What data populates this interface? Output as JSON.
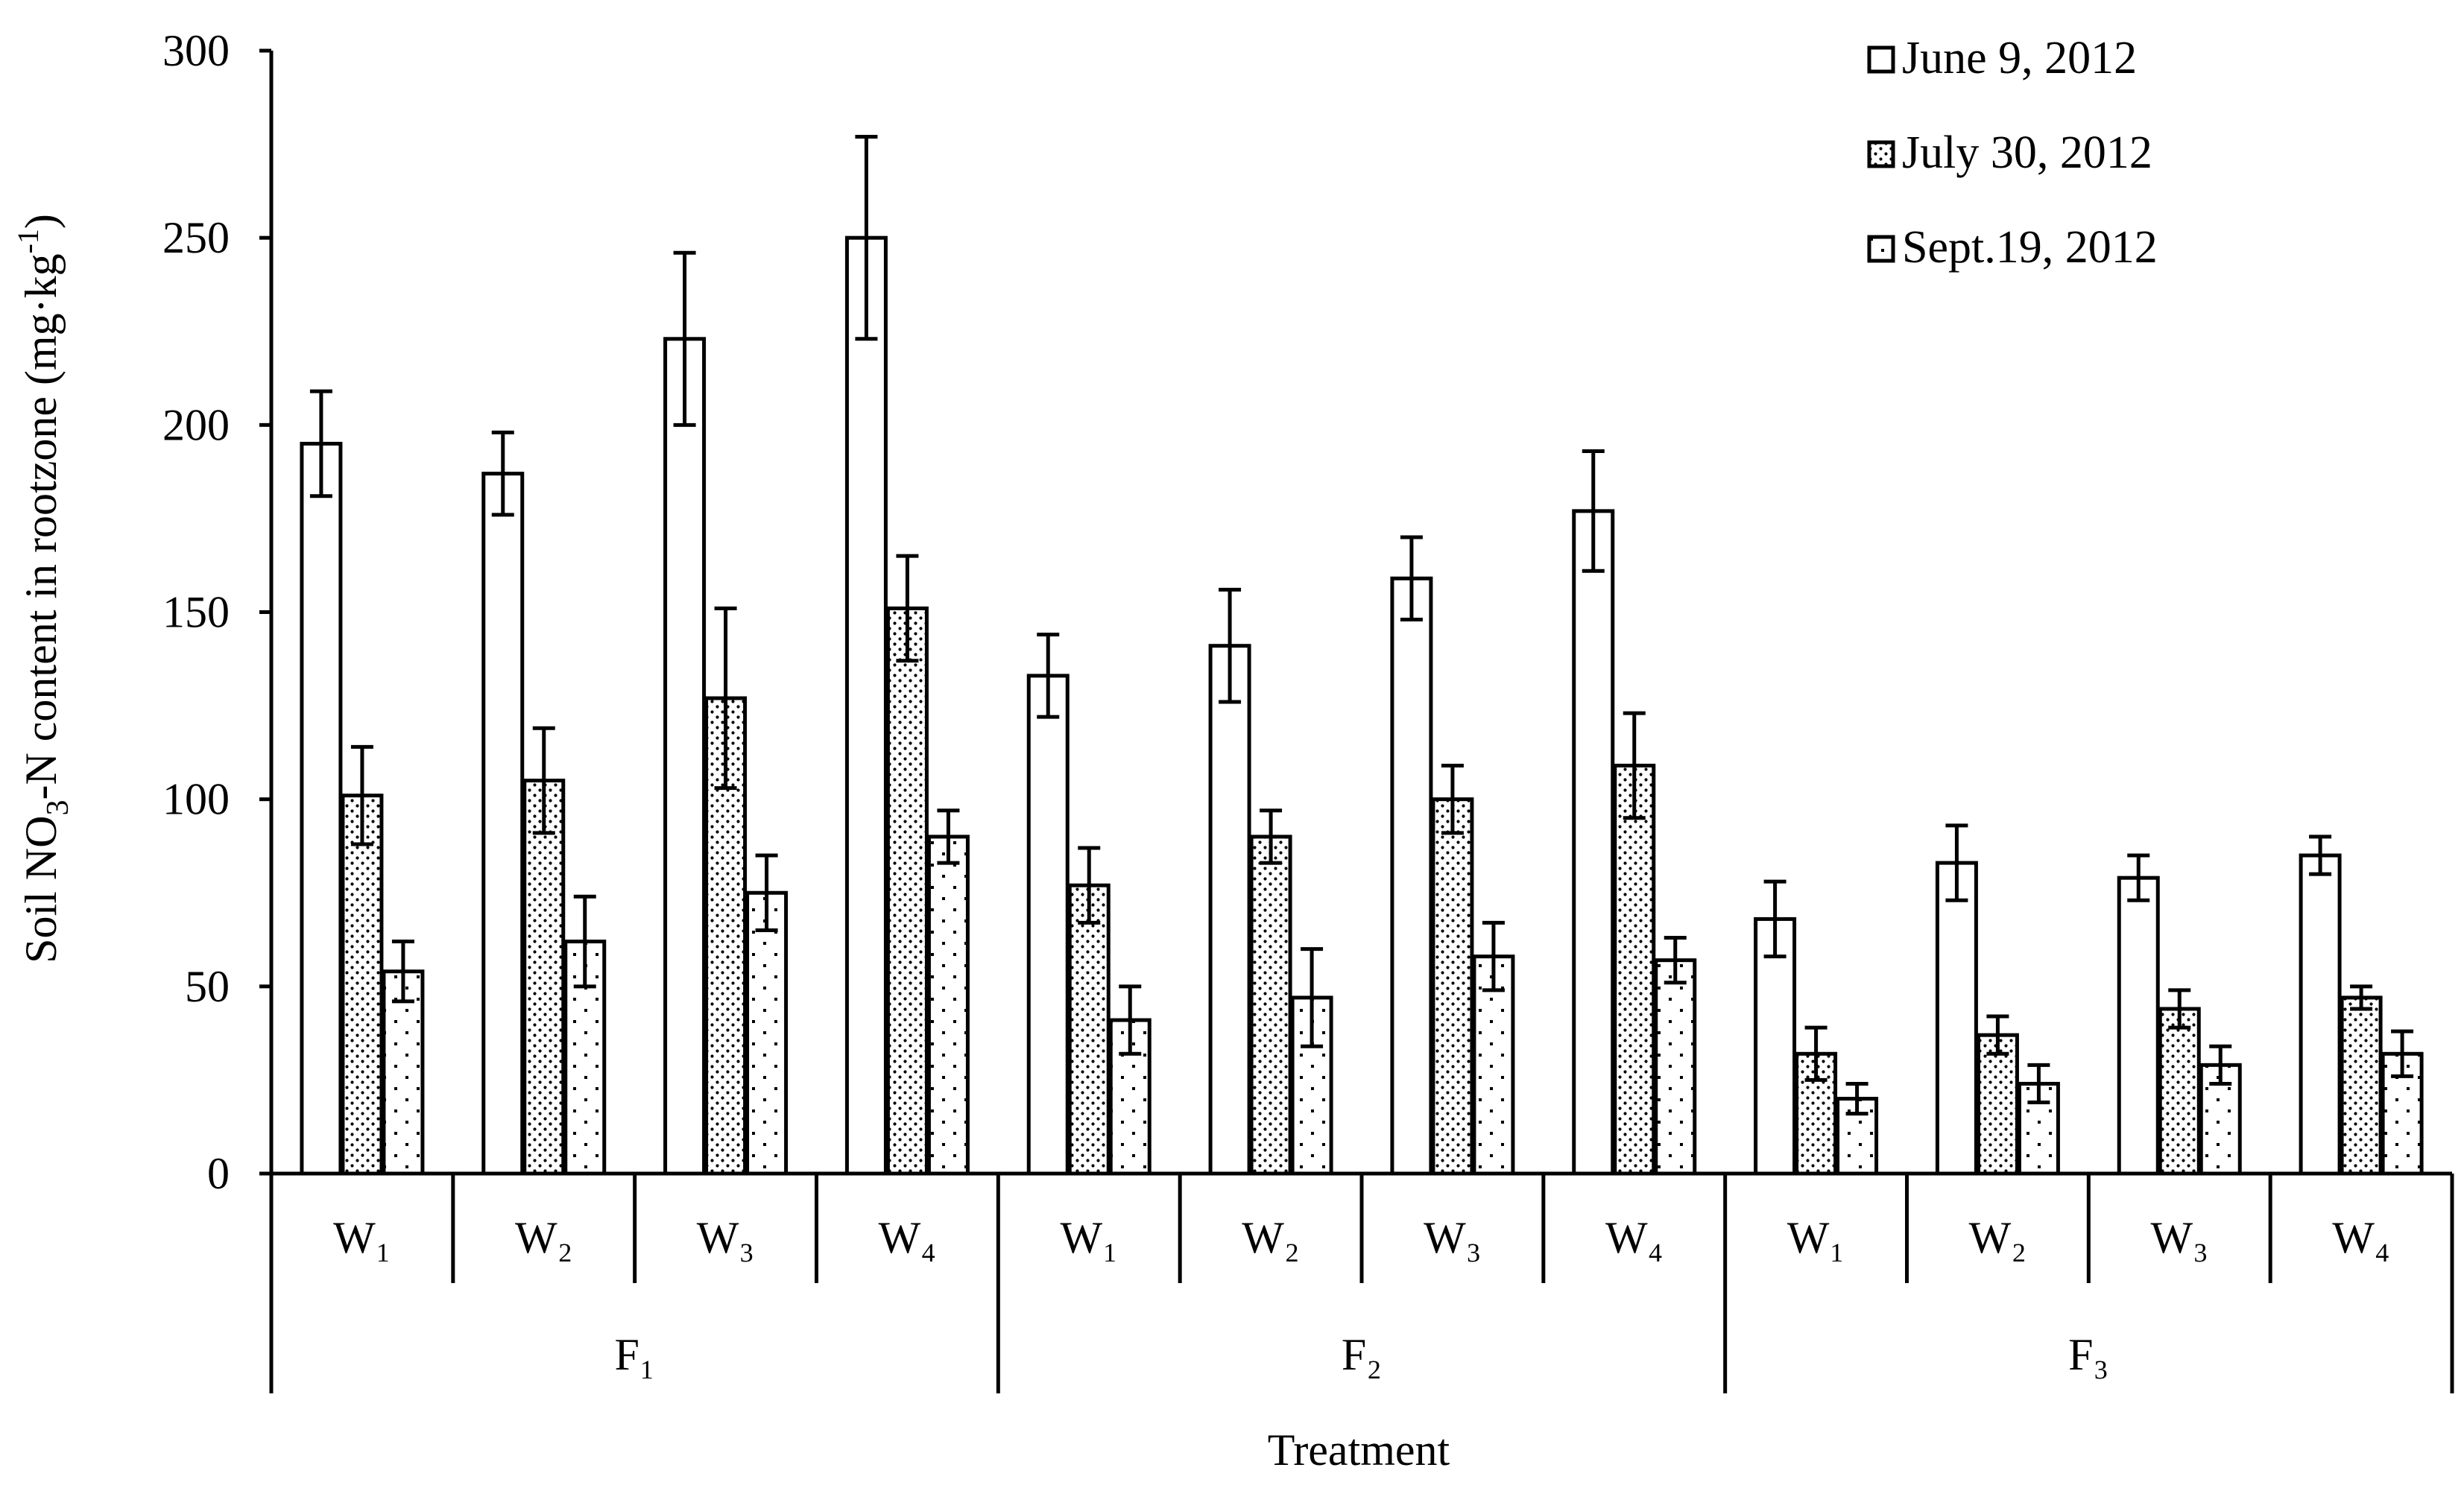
{
  "chart_data": {
    "type": "bar",
    "title": "",
    "xlabel": "Treatment",
    "ylabel_main": "Soil NO",
    "ylabel_sub": "3",
    "ylabel_mid": "-N content in rootzone (mg·kg",
    "ylabel_sup": "-1",
    "ylabel_end": ")",
    "ylim": [
      0,
      300
    ],
    "yticks": [
      "0",
      "50",
      "100",
      "150",
      "200",
      "250",
      "300"
    ],
    "groups": [
      "F₁",
      "F₂",
      "F₃"
    ],
    "categories": [
      "W₁",
      "W₂",
      "W₃",
      "W₄",
      "W₁",
      "W₂",
      "W₃",
      "W₄",
      "W₁",
      "W₂",
      "W₃",
      "W₄"
    ],
    "series": [
      {
        "name": "June 9, 2012",
        "pattern": "blank",
        "values": [
          195,
          187,
          223,
          250,
          133,
          141,
          159,
          177,
          68,
          83,
          79,
          85
        ],
        "errors": [
          14,
          11,
          23,
          27,
          11,
          15,
          11,
          16,
          10,
          10,
          6,
          5
        ]
      },
      {
        "name": "July 30, 2012",
        "pattern": "fine-dots",
        "values": [
          101,
          105,
          127,
          151,
          77,
          90,
          100,
          109,
          32,
          37,
          44,
          47
        ],
        "errors": [
          13,
          14,
          24,
          14,
          10,
          7,
          9,
          14,
          7,
          5,
          5,
          3
        ]
      },
      {
        "name": "Sept.19, 2012",
        "pattern": "sparse-dots",
        "values": [
          54,
          62,
          75,
          90,
          41,
          47,
          58,
          57,
          20,
          24,
          29,
          32
        ],
        "errors": [
          8,
          12,
          10,
          7,
          9,
          13,
          9,
          6,
          4,
          5,
          5,
          6
        ]
      }
    ]
  }
}
